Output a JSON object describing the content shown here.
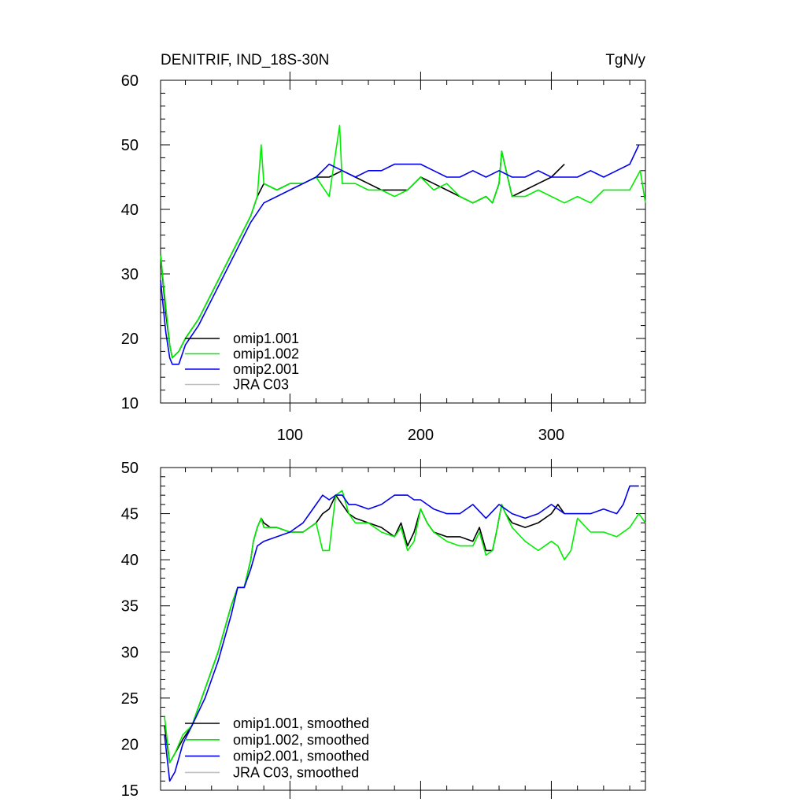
{
  "chart_data": [
    {
      "type": "line",
      "title": "DENITRIF, IND_18S-30N",
      "units": "TgN/y",
      "xlim": [
        1,
        372
      ],
      "ylim": [
        10,
        60
      ],
      "xticks": [
        100,
        200,
        300
      ],
      "yticks": [
        10,
        20,
        30,
        40,
        50,
        60
      ],
      "legend_position": "bottom-left",
      "series": [
        {
          "name": "omip1.001",
          "color": "#000000",
          "x": [
            1,
            5,
            8,
            10,
            15,
            20,
            30,
            40,
            50,
            60,
            70,
            75,
            80,
            90,
            100,
            110,
            120,
            130,
            140,
            150,
            160,
            170,
            180,
            190,
            200,
            210,
            220,
            230,
            240,
            250,
            255,
            260,
            262,
            270,
            280,
            290,
            300,
            310
          ],
          "y": [
            33,
            24,
            19,
            17,
            18,
            20,
            23,
            27,
            31,
            35,
            39,
            42,
            44,
            43,
            44,
            44,
            45,
            45,
            46,
            45,
            44,
            43,
            43,
            43,
            45,
            44,
            43,
            42,
            41,
            42,
            41,
            44,
            49,
            42,
            43,
            44,
            45,
            47
          ]
        },
        {
          "name": "omip1.002",
          "color": "#00ee00",
          "x": [
            1,
            5,
            8,
            10,
            15,
            20,
            30,
            40,
            50,
            60,
            70,
            75,
            78,
            80,
            90,
            100,
            110,
            120,
            130,
            138,
            140,
            150,
            160,
            170,
            180,
            190,
            200,
            210,
            220,
            230,
            240,
            250,
            255,
            260,
            262,
            270,
            280,
            290,
            300,
            310,
            320,
            330,
            340,
            350,
            360,
            368,
            372
          ],
          "y": [
            33,
            25,
            19,
            17,
            18,
            20,
            23,
            27,
            31,
            35,
            39,
            42,
            50,
            44,
            43,
            44,
            44,
            45,
            42,
            53,
            44,
            44,
            43,
            43,
            42,
            43,
            45,
            43,
            44,
            42,
            41,
            42,
            41,
            44,
            49,
            42,
            42,
            43,
            42,
            41,
            42,
            41,
            43,
            43,
            43,
            46,
            41
          ]
        },
        {
          "name": "omip2.001",
          "color": "#0000ee",
          "x": [
            1,
            5,
            8,
            10,
            15,
            20,
            30,
            40,
            50,
            60,
            70,
            80,
            90,
            100,
            110,
            120,
            130,
            140,
            150,
            160,
            170,
            180,
            190,
            200,
            210,
            220,
            230,
            240,
            250,
            260,
            270,
            280,
            290,
            300,
            310,
            320,
            330,
            340,
            350,
            360,
            367
          ],
          "y": [
            29,
            21,
            17,
            16,
            16,
            19,
            22,
            26,
            30,
            34,
            38,
            41,
            42,
            43,
            44,
            45,
            47,
            46,
            45,
            46,
            46,
            47,
            47,
            47,
            46,
            45,
            45,
            46,
            45,
            46,
            45,
            45,
            46,
            45,
            45,
            45,
            46,
            45,
            46,
            47,
            50
          ]
        },
        {
          "name": "JRA C03",
          "color": "#c0c0c0",
          "x": [],
          "y": []
        }
      ]
    },
    {
      "type": "line",
      "title": "",
      "xlim": [
        1,
        372
      ],
      "ylim": [
        15,
        50
      ],
      "xticks": [
        100,
        200,
        300
      ],
      "yticks": [
        15,
        20,
        25,
        30,
        35,
        40,
        45,
        50
      ],
      "legend_position": "bottom-left",
      "series": [
        {
          "name": "omip1.001, smoothed",
          "color": "#000000",
          "x": [
            4,
            8,
            12,
            18,
            25,
            35,
            45,
            55,
            60,
            65,
            70,
            72,
            75,
            78,
            80,
            85,
            90,
            100,
            110,
            115,
            120,
            125,
            130,
            135,
            140,
            145,
            150,
            160,
            170,
            180,
            185,
            190,
            195,
            200,
            205,
            210,
            220,
            230,
            240,
            245,
            250,
            255,
            258,
            262,
            265,
            270,
            280,
            290,
            300,
            305,
            310
          ],
          "y": [
            22,
            18,
            19,
            20.5,
            22,
            26,
            30,
            35,
            37,
            37,
            40,
            42,
            43.5,
            44.5,
            44,
            43.5,
            43.5,
            43,
            43,
            43.5,
            44,
            45,
            45.5,
            47,
            46,
            45,
            44.5,
            44,
            43.5,
            42.5,
            44,
            41.5,
            43,
            45.5,
            44,
            43,
            42.5,
            42.5,
            42,
            43.5,
            41,
            41,
            43,
            46,
            45,
            44,
            43.5,
            44,
            45,
            46,
            45
          ]
        },
        {
          "name": "omip1.002, smoothed",
          "color": "#00ee00",
          "x": [
            4,
            8,
            12,
            18,
            25,
            35,
            45,
            55,
            60,
            65,
            70,
            72,
            75,
            78,
            80,
            85,
            90,
            100,
            110,
            115,
            120,
            125,
            130,
            135,
            140,
            145,
            150,
            160,
            170,
            180,
            185,
            190,
            195,
            200,
            205,
            210,
            220,
            230,
            240,
            245,
            250,
            255,
            258,
            262,
            265,
            270,
            280,
            290,
            300,
            305,
            310,
            315,
            320,
            330,
            340,
            350,
            360,
            367,
            372
          ],
          "y": [
            23,
            18,
            19,
            21,
            22,
            26,
            30,
            35,
            37,
            37,
            40,
            42,
            43.5,
            44.5,
            43.5,
            43.5,
            43.5,
            43,
            43,
            43.5,
            44,
            41,
            41,
            47,
            47.5,
            45,
            44,
            44,
            43,
            42.5,
            43.5,
            41,
            42,
            45.5,
            44,
            43,
            42,
            41.5,
            41.5,
            43,
            40.5,
            41,
            43,
            46,
            45,
            43.5,
            42,
            41,
            42,
            41.5,
            40,
            41,
            44.5,
            43,
            43,
            42.5,
            43.5,
            45,
            44
          ]
        },
        {
          "name": "omip2.001, smoothed",
          "color": "#0000ee",
          "x": [
            4,
            8,
            12,
            18,
            25,
            35,
            45,
            55,
            60,
            65,
            70,
            75,
            80,
            90,
            100,
            110,
            115,
            120,
            125,
            130,
            135,
            140,
            145,
            150,
            160,
            170,
            180,
            190,
            195,
            200,
            205,
            210,
            220,
            230,
            240,
            250,
            260,
            270,
            280,
            290,
            300,
            310,
            320,
            330,
            340,
            350,
            355,
            360,
            367
          ],
          "y": [
            21,
            16,
            17,
            20,
            22,
            25,
            29,
            34,
            37,
            37,
            39,
            41.5,
            42,
            42.5,
            43,
            44,
            45,
            46,
            47,
            46.5,
            47,
            47,
            46,
            46,
            45.5,
            46,
            47,
            47,
            46.5,
            46.5,
            46,
            45.5,
            45,
            45,
            46,
            44.5,
            46,
            45,
            44.5,
            45,
            46,
            45,
            45,
            45,
            45.5,
            45,
            46,
            48,
            48
          ]
        },
        {
          "name": "JRA C03, smoothed",
          "color": "#c0c0c0",
          "x": [],
          "y": []
        }
      ]
    }
  ]
}
